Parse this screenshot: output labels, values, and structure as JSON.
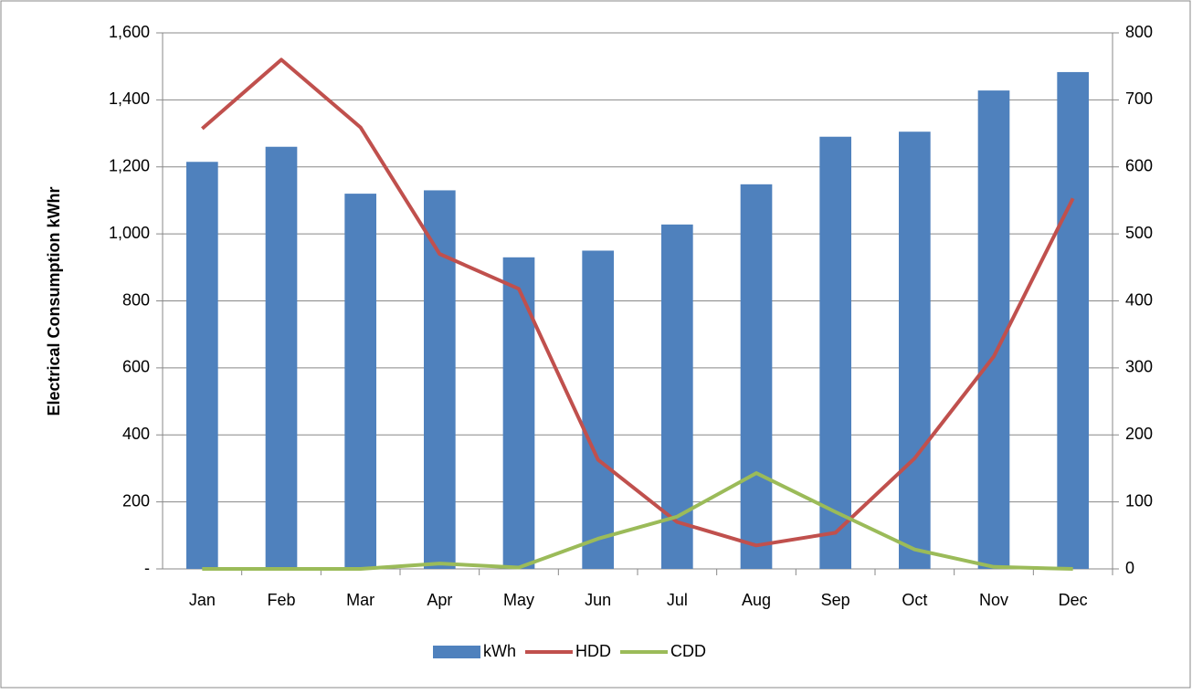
{
  "chart_data": {
    "type": "bar",
    "y_label": "Electrical Consumption kWhr",
    "categories": [
      "Jan",
      "Feb",
      "Mar",
      "Apr",
      "May",
      "Jun",
      "Jul",
      "Aug",
      "Sep",
      "Oct",
      "Nov",
      "Dec"
    ],
    "series": [
      {
        "name": "kWh",
        "type": "bar",
        "color": "#4f81bd",
        "values": [
          1215,
          1260,
          1120,
          1130,
          930,
          950,
          1028,
          1148,
          1290,
          1305,
          1428,
          1483
        ]
      },
      {
        "name": "HDD",
        "type": "line",
        "axis": "y2",
        "color": "#c0504d",
        "values": [
          657,
          760,
          659,
          470,
          418,
          163,
          70,
          35,
          54,
          165,
          317,
          553
        ]
      },
      {
        "name": "CDD",
        "type": "line",
        "axis": "y2",
        "color": "#9bbb59",
        "values": [
          0,
          0,
          0,
          8,
          2,
          45,
          78,
          143,
          85,
          29,
          3,
          0
        ]
      }
    ],
    "ylim": [
      0,
      1600
    ],
    "yticks": [
      {
        "value": 0,
        "label": "-"
      },
      200,
      400,
      600,
      800,
      {
        "value": 1000,
        "label": "1,000"
      },
      {
        "value": 1200,
        "label": "1,200"
      },
      {
        "value": 1400,
        "label": "1,400"
      },
      {
        "value": 1600,
        "label": "1,600"
      }
    ],
    "y2lim": [
      0,
      800
    ],
    "y2ticks": [
      0,
      100,
      200,
      300,
      400,
      500,
      600,
      700,
      800
    ],
    "grid": true,
    "legend": "bottom"
  }
}
